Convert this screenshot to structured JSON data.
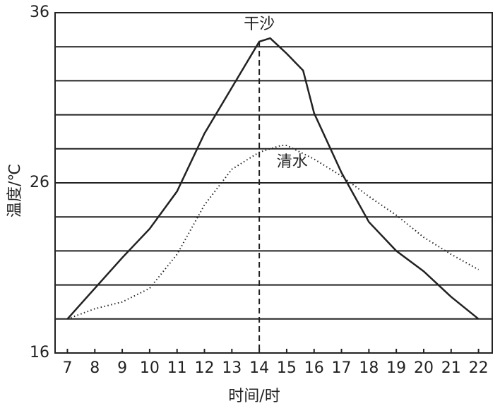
{
  "chart_data": {
    "type": "line",
    "x_label": "时间/时",
    "y_label": "温度/℃",
    "xlim": [
      6.55,
      22.5
    ],
    "ylim": [
      16,
      36
    ],
    "xticks": [
      7,
      8,
      9,
      10,
      11,
      12,
      13,
      14,
      15,
      16,
      17,
      18,
      19,
      20,
      21,
      22
    ],
    "yticks": [
      16,
      26,
      36
    ],
    "ygrid": [
      18,
      20,
      22,
      24,
      26,
      28,
      30,
      32,
      34
    ],
    "vline": 14,
    "series": [
      {
        "name": "干沙",
        "color": "#222222",
        "style": "solid",
        "x": [
          7,
          8,
          9,
          10,
          11,
          12,
          13,
          14,
          14.4,
          15,
          15.6,
          16,
          17,
          18,
          19,
          20,
          21,
          22
        ],
        "values": [
          18,
          19.8,
          21.6,
          23.3,
          25.5,
          28.9,
          31.6,
          34.3,
          34.5,
          33.6,
          32.6,
          30.1,
          26.6,
          23.7,
          22,
          20.8,
          19.3,
          18
        ]
      },
      {
        "name": "清水",
        "color": "#222222",
        "style": "dotted",
        "x": [
          7,
          8,
          9,
          10,
          11,
          12,
          13,
          14,
          14.8,
          15,
          16,
          17,
          18,
          19,
          20,
          21,
          22
        ],
        "values": [
          18,
          18.6,
          19,
          19.8,
          21.8,
          24.7,
          26.8,
          27.8,
          28.2,
          28.2,
          27.4,
          26.4,
          25.2,
          24.1,
          22.8,
          21.8,
          20.9
        ]
      }
    ]
  }
}
